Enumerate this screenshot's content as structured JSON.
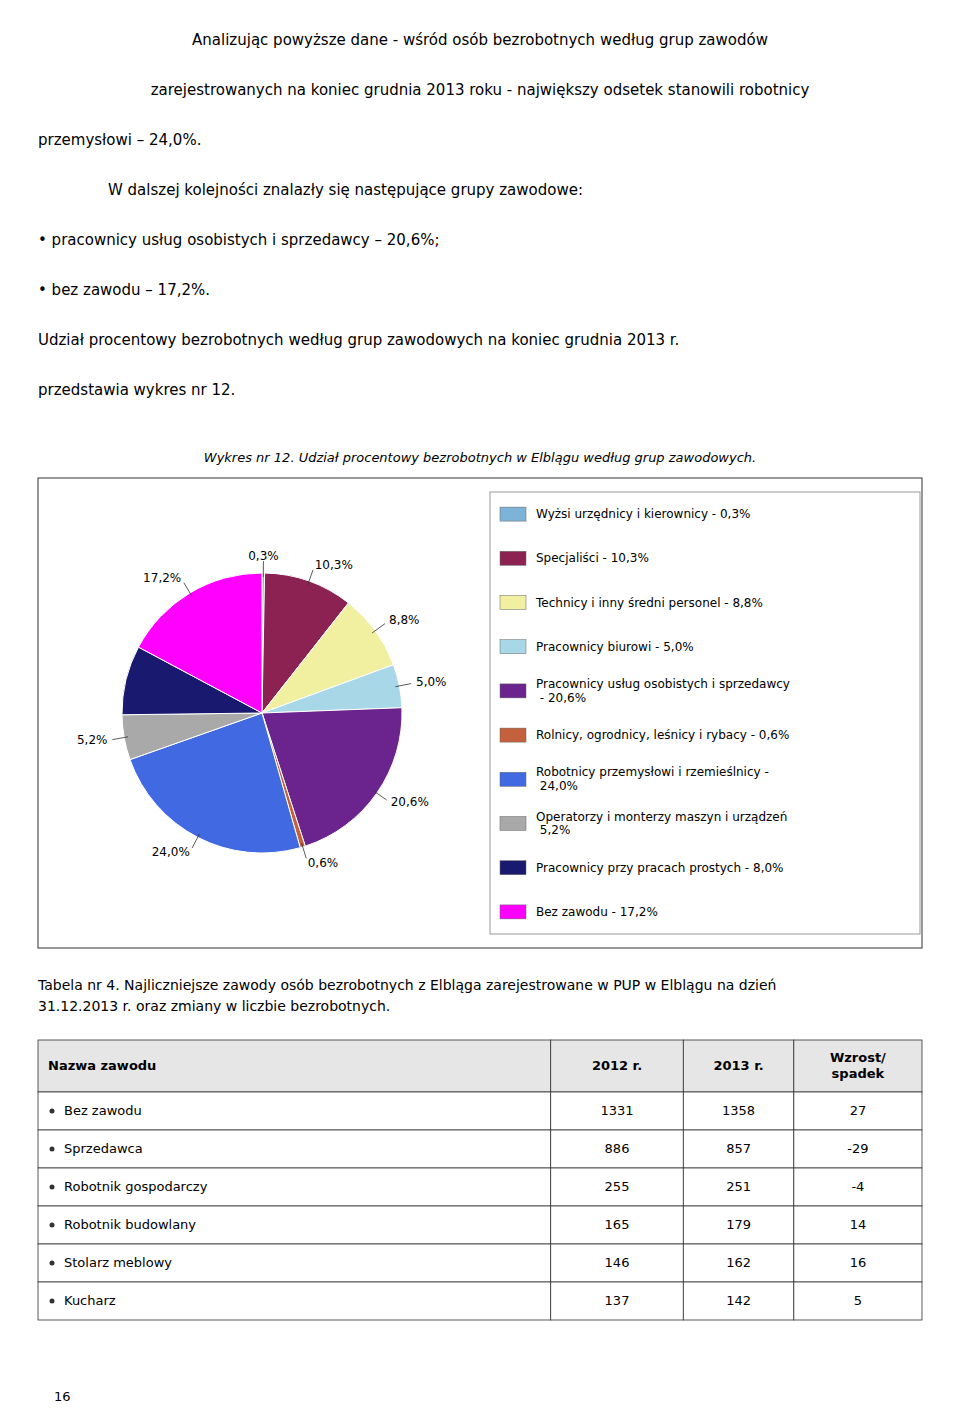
{
  "chart_data": {
    "type": "pie",
    "title": "Wykres nr 12. Udział procentowy bezrobotnych w Elblągu według grup zawodowych.",
    "categories": [
      "Wyżsi urzędnicy i kierownicy - 0,3%",
      "Specjaliści - 10,3%",
      "Technicy i inny średni personel - 8,8%",
      "Pracownicy biurowi - 5,0%",
      "Pracownicy usług osobistych i sprzedawcy\n - 20,6%",
      "Rolnicy, ogrodnicy, leśnicy i rybacy - 0,6%",
      "Robotnicy przemysłowi i rzemieślnicy -\n 24,0%",
      "Operatorzy i monterzy maszyn i urządzeń\n 5,2%",
      "Pracownicy przy pracach prostych - 8,0%",
      "Bez zawodu - 17,2%"
    ],
    "values": [
      0.3,
      10.3,
      8.8,
      5.0,
      20.6,
      0.6,
      24.0,
      5.2,
      8.0,
      17.2
    ],
    "value_labels": [
      "0,3%",
      "10,3%",
      "8,8%",
      "5,0%",
      "20,6%",
      "0,6%",
      "24,0%",
      "5,2%",
      null,
      "17,2%"
    ],
    "colors": [
      "#7EB3D8",
      "#8B2252",
      "#F0F0A0",
      "#A8D8E8",
      "#6B238E",
      "#C4603C",
      "#4169E1",
      "#A9A9A9",
      "#191970",
      "#FF00FF"
    ],
    "data_labels": true,
    "legend": "right"
  },
  "page": {
    "text": [
      "Analizując powyższe dane - wśród osób bezrobotnych według grup zawodów",
      "zarejestrowanych na koniec grudnia 2013 roku - największy odsetek stanowili robotnicy",
      "przemysłowi – 24,0%.",
      "W dalszej kolejności znalazły się następujące grupy zawodowe:",
      "•  pracownicy usług osobistych i sprzedawcy – 20,6%;",
      "•  bez zawodu – 17,2%.",
      "Udział procentowy bezrobotnych według grup zawodowych na koniec grudnia 2013 r.",
      "przedstawia wykres nr 12."
    ],
    "page_number": "16"
  },
  "table": {
    "caption": [
      "Tabela nr 4. Najliczniejsze zawody osób bezrobotnych z Elbląga zarejestrowane w PUP w Elblągu na dzień",
      "31.12.2013 r. oraz zmiany w liczbie bezrobotnych."
    ],
    "columns": [
      "Nazwa zawodu",
      "2012 r.",
      "2013 r.",
      "Wzrost/\nspadek"
    ],
    "rows": [
      [
        "Bez zawodu",
        1331,
        1358,
        27
      ],
      [
        "Sprzedawca",
        886,
        857,
        -29
      ],
      [
        "Robotnik gospodarczy",
        255,
        251,
        -4
      ],
      [
        "Robotnik budowlany",
        165,
        179,
        14
      ],
      [
        "Stolarz meblowy",
        146,
        162,
        16
      ],
      [
        "Kucharz",
        137,
        142,
        5
      ]
    ]
  }
}
